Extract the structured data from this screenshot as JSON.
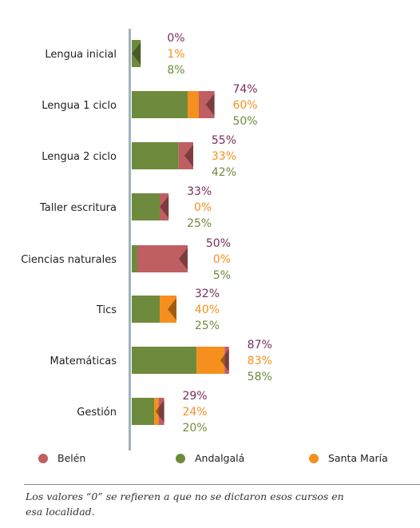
{
  "colors": {
    "belen": "#bf5f62",
    "andalgala": "#6e8b3d",
    "santa_maria": "#f5901e",
    "belen_text": "#7a2b5a",
    "axis": "#9fb2bd"
  },
  "chart_data": {
    "type": "bar",
    "orientation": "horizontal",
    "stacked": true,
    "categories": [
      "Lengua inicial",
      "Lengua 1 ciclo",
      "Lengua 2 ciclo",
      "Taller escritura",
      "Ciencias naturales",
      "Tics",
      "Matemáticas",
      "Gestión"
    ],
    "series": [
      {
        "name": "Belén",
        "key": "belen",
        "values": [
          0,
          74,
          55,
          33,
          50,
          32,
          87,
          29
        ]
      },
      {
        "name": "Santa María",
        "key": "santa_maria",
        "values": [
          1,
          60,
          33,
          0,
          0,
          40,
          83,
          24
        ]
      },
      {
        "name": "Andalgalá",
        "key": "andalgala",
        "values": [
          8,
          50,
          42,
          25,
          5,
          25,
          58,
          20
        ]
      }
    ],
    "value_suffix": "%",
    "legend_position": "bottom"
  },
  "legend": [
    {
      "label": "Belén",
      "key": "belen"
    },
    {
      "label": "Andalgalá",
      "key": "andalgala"
    },
    {
      "label": "Santa María",
      "key": "santa_maria"
    }
  ],
  "note": "Los valores “0” se refieren a que no se dictaron esos cursos en esa localidad."
}
